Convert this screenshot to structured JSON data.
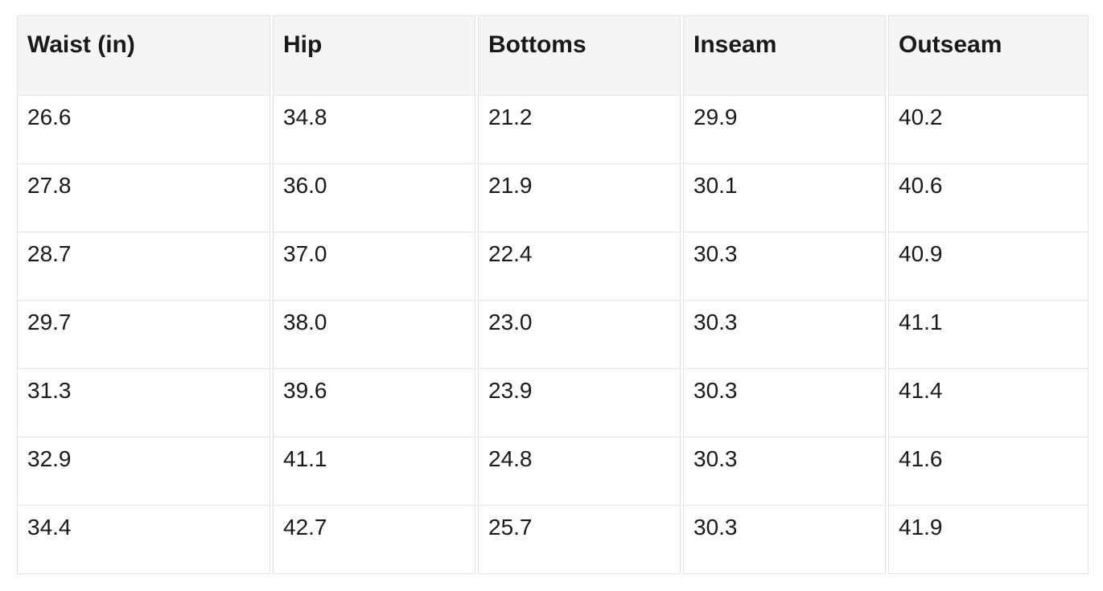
{
  "table": {
    "columns": [
      "Waist (in)",
      "Hip",
      "Bottoms",
      "Inseam",
      "Outseam"
    ],
    "rows": [
      [
        "26.6",
        "34.8",
        "21.2",
        "29.9",
        "40.2"
      ],
      [
        "27.8",
        "36.0",
        "21.9",
        "30.1",
        "40.6"
      ],
      [
        "28.7",
        "37.0",
        "22.4",
        "30.3",
        "40.9"
      ],
      [
        "29.7",
        "38.0",
        "23.0",
        "30.3",
        "41.1"
      ],
      [
        "31.3",
        "39.6",
        "23.9",
        "30.3",
        "41.4"
      ],
      [
        "32.9",
        "41.1",
        "24.8",
        "30.3",
        "41.6"
      ],
      [
        "34.4",
        "42.7",
        "25.7",
        "30.3",
        "41.9"
      ]
    ]
  },
  "colors": {
    "header_bg": "#f5f5f5",
    "border": "#e2e2e2",
    "text": "#191919",
    "page_bg": "#ffffff"
  }
}
